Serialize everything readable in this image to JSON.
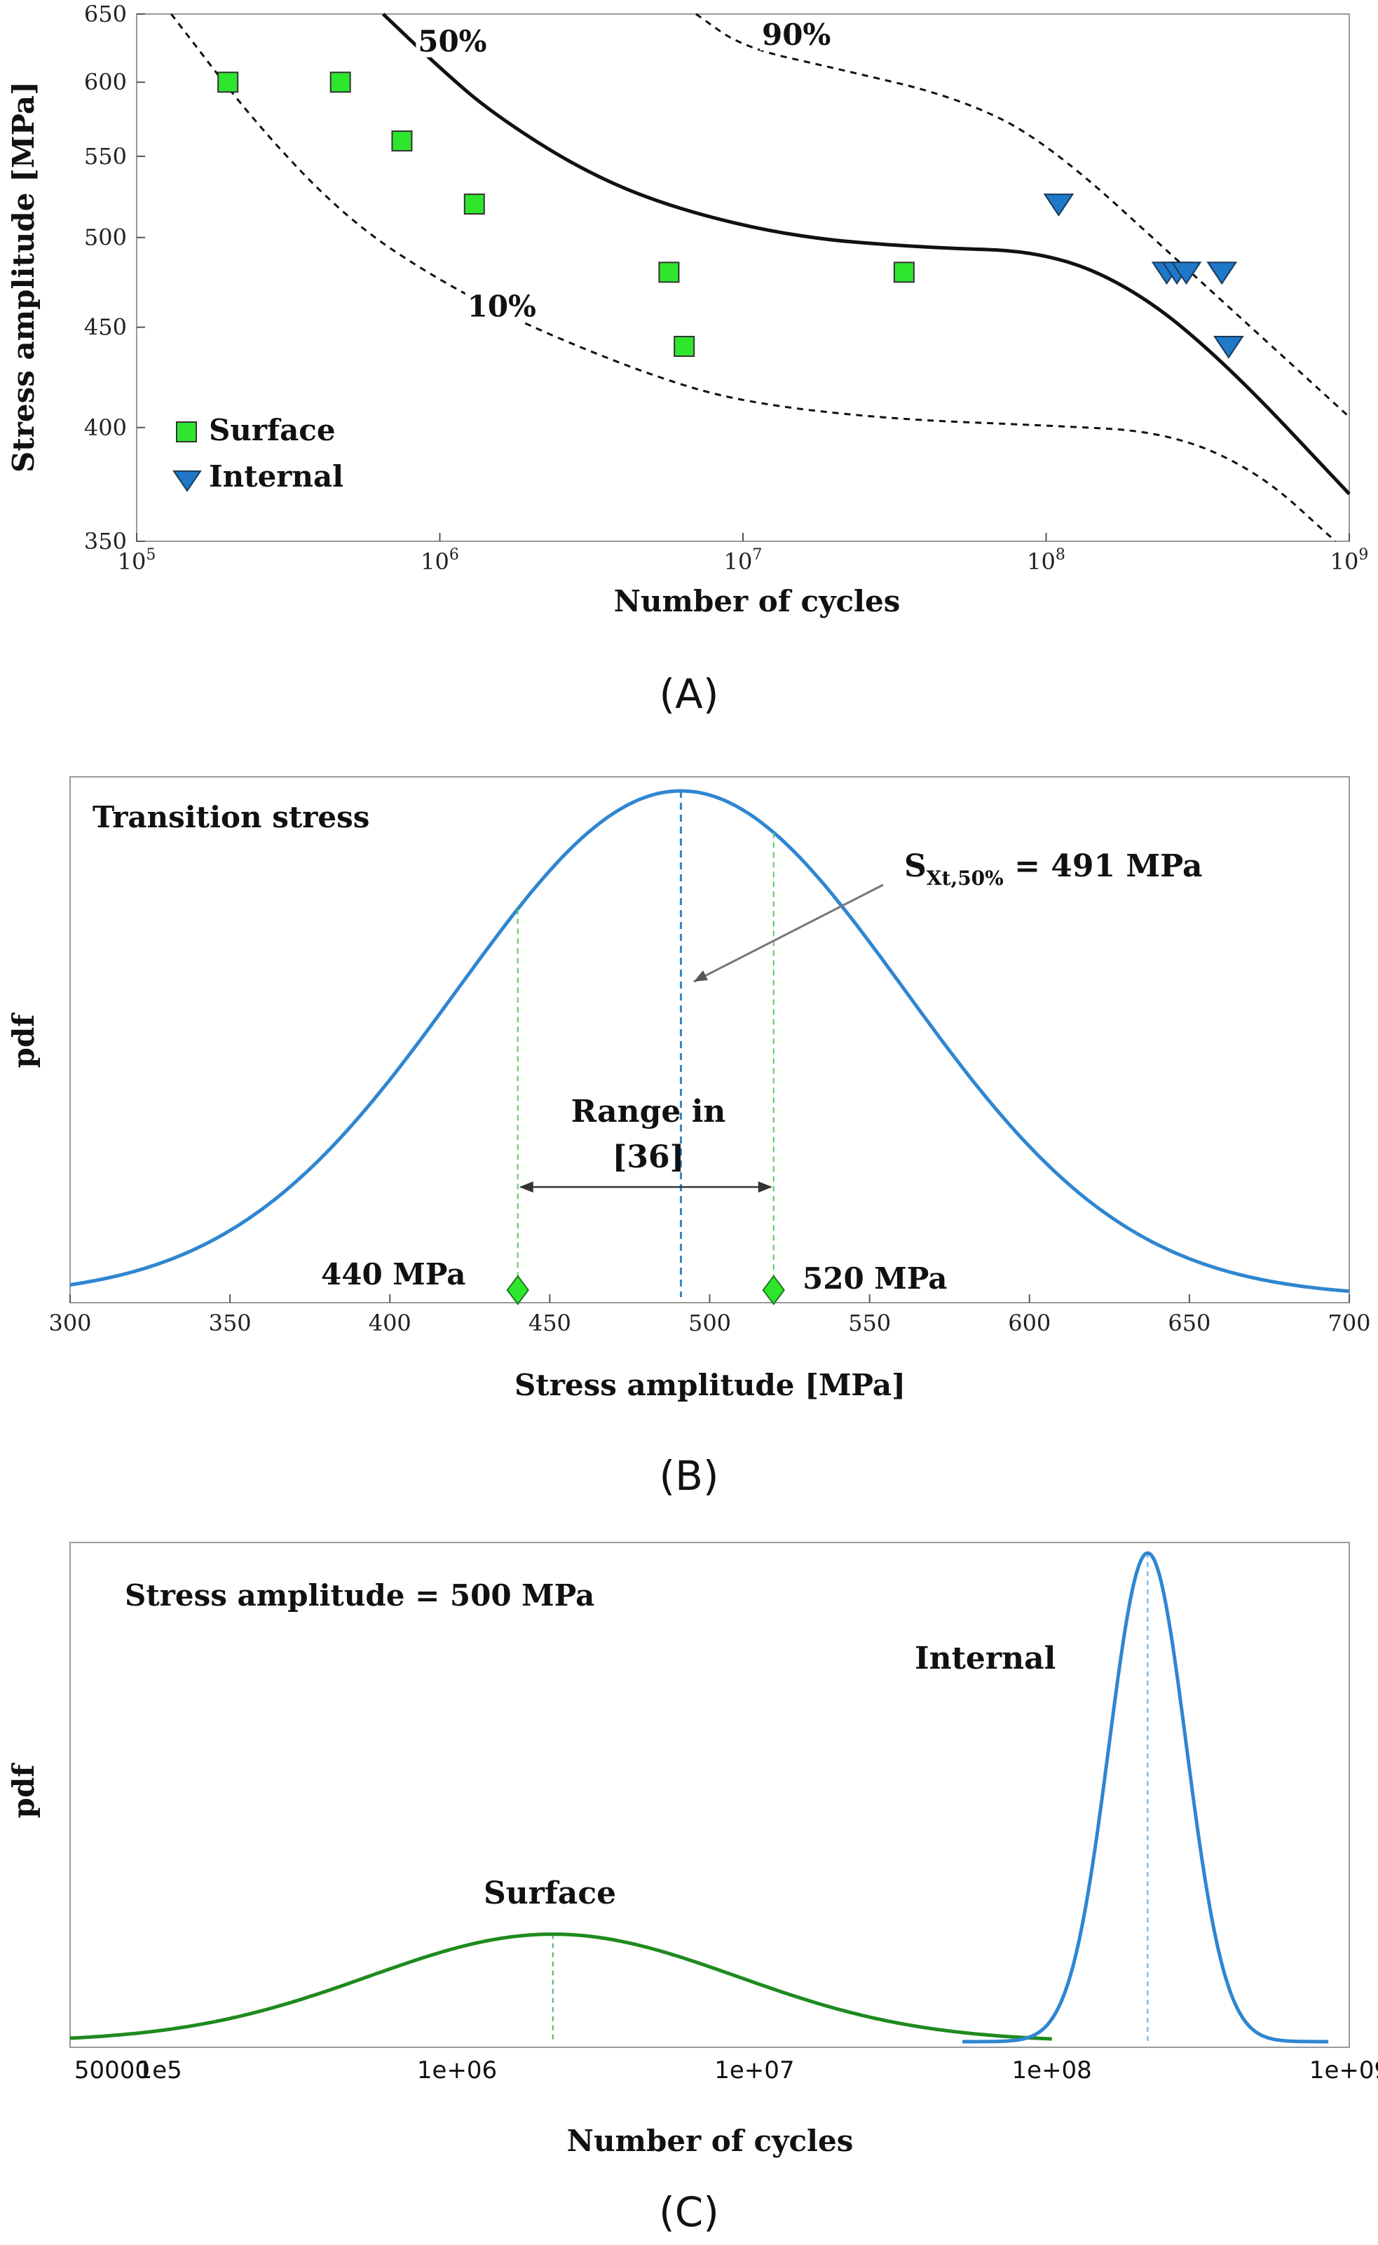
{
  "chart_data": [
    {
      "panel": "(A)",
      "type": "scatter",
      "xlabel": "Number of cycles",
      "ylabel": "Stress amplitude [MPa]",
      "x_scale": "log",
      "y_scale": "log",
      "xlim": [
        100000,
        1000000000
      ],
      "ylim": [
        350,
        650
      ],
      "x_tick_values": [
        100000,
        1000000,
        10000000,
        100000000,
        1000000000
      ],
      "x_tick_labels": [
        [
          "10",
          "5"
        ],
        [
          "10",
          "6"
        ],
        [
          "10",
          "7"
        ],
        [
          "10",
          "8"
        ],
        [
          "10",
          "9"
        ]
      ],
      "y_tick_values": [
        350,
        400,
        450,
        500,
        550,
        600,
        650
      ],
      "y_tick_labels": [
        "350",
        "400",
        "450",
        "500",
        "550",
        "600",
        "650"
      ],
      "legend_position": "bottom-left",
      "series": [
        {
          "name": "Surface",
          "marker": "square",
          "color": "#2ee62e",
          "points": [
            [
              200000,
              600
            ],
            [
              470000,
              600
            ],
            [
              750000,
              560
            ],
            [
              1300000,
              520
            ],
            [
              5700000,
              480
            ],
            [
              6400000,
              440
            ],
            [
              34000000,
              480
            ]
          ]
        },
        {
          "name": "Internal",
          "marker": "triangle-down",
          "color": "#1f78c8",
          "points": [
            [
              110000000,
              520
            ],
            [
              250000000,
              480
            ],
            [
              270000000,
              480
            ],
            [
              290000000,
              480
            ],
            [
              380000000,
              480
            ],
            [
              400000000,
              440
            ]
          ]
        }
      ],
      "curves": [
        {
          "label": "50%",
          "style": "solid",
          "points": [
            [
              650000,
              650
            ],
            [
              1000000,
              610
            ],
            [
              1500000,
              578
            ],
            [
              3000000,
              540
            ],
            [
              6000000,
              517
            ],
            [
              15000000,
              500
            ],
            [
              40000000,
              494
            ],
            [
              100000000,
              492
            ],
            [
              200000000,
              470
            ],
            [
              400000000,
              430
            ],
            [
              1000000000,
              370
            ]
          ]
        },
        {
          "label": "10%",
          "style": "dashed",
          "points": [
            [
              130000,
              650
            ],
            [
              250000,
              570
            ],
            [
              500000,
              510
            ],
            [
              1000000,
              475
            ],
            [
              2000000,
              450
            ],
            [
              5000000,
              425
            ],
            [
              10000000,
              412
            ],
            [
              30000000,
              404
            ],
            [
              100000000,
              401
            ],
            [
              250000000,
              398
            ],
            [
              500000000,
              380
            ],
            [
              900000000,
              350
            ]
          ]
        },
        {
          "label": "90%",
          "style": "dashed",
          "points": [
            [
              7000000,
              650
            ],
            [
              10000000,
              625
            ],
            [
              20000000,
              610
            ],
            [
              50000000,
              590
            ],
            [
              100000000,
              560
            ],
            [
              300000000,
              480
            ],
            [
              1000000000,
              405
            ]
          ]
        }
      ],
      "curve_label_anchors": [
        [
          1100000,
          625
        ],
        [
          1600000,
          458
        ],
        [
          15000000,
          630
        ]
      ],
      "caption": "(A)"
    },
    {
      "panel": "(B)",
      "type": "line",
      "xlabel": "Stress amplitude [MPa]",
      "ylabel": "pdf",
      "xlim": [
        300,
        700
      ],
      "x_ticks": [
        300,
        350,
        400,
        450,
        500,
        550,
        600,
        650,
        700
      ],
      "title_text": "Transition stress",
      "series": [
        {
          "mean": 491,
          "sd": 70,
          "color": "#2f86d1"
        }
      ],
      "median_label": {
        "prefix": "S",
        "subscript": "Xt,50%",
        "suffix": " = 491 MPa",
        "x": 491
      },
      "range_label": [
        "Range in",
        "[36]"
      ],
      "range": [
        440,
        520
      ],
      "markers": [
        {
          "x": 440,
          "label": "440 MPa",
          "color": "#2ee62e"
        },
        {
          "x": 520,
          "label": "520 MPa",
          "color": "#2ee62e"
        }
      ],
      "caption": "(B)"
    },
    {
      "panel": "(C)",
      "type": "line",
      "xlabel": "Number of cycles",
      "ylabel": "pdf",
      "x_scale": "log",
      "xlim": [
        50000,
        1000000000
      ],
      "x_tick_values": [
        50000,
        100000,
        1000000,
        10000000,
        100000000,
        1000000000
      ],
      "x_tick_labels": [
        "50000",
        "1e5",
        "1e+06",
        "1e+07",
        "1e+08",
        "1e+09"
      ],
      "title_text": "Stress amplitude = 500 MPa",
      "series": [
        {
          "name": "Surface",
          "color": "#1e8a1e",
          "mode": 2100000,
          "log_sd": 0.62,
          "peak": 0.22,
          "x_range": [
            50000,
            100000000
          ]
        },
        {
          "name": "Internal",
          "color": "#2f86d1",
          "mode": 210000000,
          "log_sd": 0.13,
          "peak": 1.0,
          "x_range": [
            50000000,
            850000000
          ]
        }
      ],
      "caption": "(C)"
    }
  ]
}
